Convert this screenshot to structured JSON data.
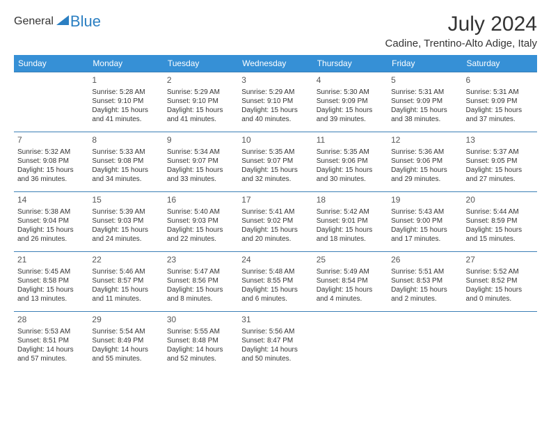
{
  "logo": {
    "word1": "General",
    "word2": "Blue"
  },
  "title": "July 2024",
  "location": "Cadine, Trentino-Alto Adige, Italy",
  "colors": {
    "header_bg": "#3690d6",
    "header_text": "#ffffff",
    "cell_border": "#3a7eb5",
    "logo_accent": "#2b7fc2"
  },
  "weekdays": [
    "Sunday",
    "Monday",
    "Tuesday",
    "Wednesday",
    "Thursday",
    "Friday",
    "Saturday"
  ],
  "weeks": [
    [
      null,
      {
        "d": "1",
        "sr": "Sunrise: 5:28 AM",
        "ss": "Sunset: 9:10 PM",
        "dl1": "Daylight: 15 hours",
        "dl2": "and 41 minutes."
      },
      {
        "d": "2",
        "sr": "Sunrise: 5:29 AM",
        "ss": "Sunset: 9:10 PM",
        "dl1": "Daylight: 15 hours",
        "dl2": "and 41 minutes."
      },
      {
        "d": "3",
        "sr": "Sunrise: 5:29 AM",
        "ss": "Sunset: 9:10 PM",
        "dl1": "Daylight: 15 hours",
        "dl2": "and 40 minutes."
      },
      {
        "d": "4",
        "sr": "Sunrise: 5:30 AM",
        "ss": "Sunset: 9:09 PM",
        "dl1": "Daylight: 15 hours",
        "dl2": "and 39 minutes."
      },
      {
        "d": "5",
        "sr": "Sunrise: 5:31 AM",
        "ss": "Sunset: 9:09 PM",
        "dl1": "Daylight: 15 hours",
        "dl2": "and 38 minutes."
      },
      {
        "d": "6",
        "sr": "Sunrise: 5:31 AM",
        "ss": "Sunset: 9:09 PM",
        "dl1": "Daylight: 15 hours",
        "dl2": "and 37 minutes."
      }
    ],
    [
      {
        "d": "7",
        "sr": "Sunrise: 5:32 AM",
        "ss": "Sunset: 9:08 PM",
        "dl1": "Daylight: 15 hours",
        "dl2": "and 36 minutes."
      },
      {
        "d": "8",
        "sr": "Sunrise: 5:33 AM",
        "ss": "Sunset: 9:08 PM",
        "dl1": "Daylight: 15 hours",
        "dl2": "and 34 minutes."
      },
      {
        "d": "9",
        "sr": "Sunrise: 5:34 AM",
        "ss": "Sunset: 9:07 PM",
        "dl1": "Daylight: 15 hours",
        "dl2": "and 33 minutes."
      },
      {
        "d": "10",
        "sr": "Sunrise: 5:35 AM",
        "ss": "Sunset: 9:07 PM",
        "dl1": "Daylight: 15 hours",
        "dl2": "and 32 minutes."
      },
      {
        "d": "11",
        "sr": "Sunrise: 5:35 AM",
        "ss": "Sunset: 9:06 PM",
        "dl1": "Daylight: 15 hours",
        "dl2": "and 30 minutes."
      },
      {
        "d": "12",
        "sr": "Sunrise: 5:36 AM",
        "ss": "Sunset: 9:06 PM",
        "dl1": "Daylight: 15 hours",
        "dl2": "and 29 minutes."
      },
      {
        "d": "13",
        "sr": "Sunrise: 5:37 AM",
        "ss": "Sunset: 9:05 PM",
        "dl1": "Daylight: 15 hours",
        "dl2": "and 27 minutes."
      }
    ],
    [
      {
        "d": "14",
        "sr": "Sunrise: 5:38 AM",
        "ss": "Sunset: 9:04 PM",
        "dl1": "Daylight: 15 hours",
        "dl2": "and 26 minutes."
      },
      {
        "d": "15",
        "sr": "Sunrise: 5:39 AM",
        "ss": "Sunset: 9:03 PM",
        "dl1": "Daylight: 15 hours",
        "dl2": "and 24 minutes."
      },
      {
        "d": "16",
        "sr": "Sunrise: 5:40 AM",
        "ss": "Sunset: 9:03 PM",
        "dl1": "Daylight: 15 hours",
        "dl2": "and 22 minutes."
      },
      {
        "d": "17",
        "sr": "Sunrise: 5:41 AM",
        "ss": "Sunset: 9:02 PM",
        "dl1": "Daylight: 15 hours",
        "dl2": "and 20 minutes."
      },
      {
        "d": "18",
        "sr": "Sunrise: 5:42 AM",
        "ss": "Sunset: 9:01 PM",
        "dl1": "Daylight: 15 hours",
        "dl2": "and 18 minutes."
      },
      {
        "d": "19",
        "sr": "Sunrise: 5:43 AM",
        "ss": "Sunset: 9:00 PM",
        "dl1": "Daylight: 15 hours",
        "dl2": "and 17 minutes."
      },
      {
        "d": "20",
        "sr": "Sunrise: 5:44 AM",
        "ss": "Sunset: 8:59 PM",
        "dl1": "Daylight: 15 hours",
        "dl2": "and 15 minutes."
      }
    ],
    [
      {
        "d": "21",
        "sr": "Sunrise: 5:45 AM",
        "ss": "Sunset: 8:58 PM",
        "dl1": "Daylight: 15 hours",
        "dl2": "and 13 minutes."
      },
      {
        "d": "22",
        "sr": "Sunrise: 5:46 AM",
        "ss": "Sunset: 8:57 PM",
        "dl1": "Daylight: 15 hours",
        "dl2": "and 11 minutes."
      },
      {
        "d": "23",
        "sr": "Sunrise: 5:47 AM",
        "ss": "Sunset: 8:56 PM",
        "dl1": "Daylight: 15 hours",
        "dl2": "and 8 minutes."
      },
      {
        "d": "24",
        "sr": "Sunrise: 5:48 AM",
        "ss": "Sunset: 8:55 PM",
        "dl1": "Daylight: 15 hours",
        "dl2": "and 6 minutes."
      },
      {
        "d": "25",
        "sr": "Sunrise: 5:49 AM",
        "ss": "Sunset: 8:54 PM",
        "dl1": "Daylight: 15 hours",
        "dl2": "and 4 minutes."
      },
      {
        "d": "26",
        "sr": "Sunrise: 5:51 AM",
        "ss": "Sunset: 8:53 PM",
        "dl1": "Daylight: 15 hours",
        "dl2": "and 2 minutes."
      },
      {
        "d": "27",
        "sr": "Sunrise: 5:52 AM",
        "ss": "Sunset: 8:52 PM",
        "dl1": "Daylight: 15 hours",
        "dl2": "and 0 minutes."
      }
    ],
    [
      {
        "d": "28",
        "sr": "Sunrise: 5:53 AM",
        "ss": "Sunset: 8:51 PM",
        "dl1": "Daylight: 14 hours",
        "dl2": "and 57 minutes."
      },
      {
        "d": "29",
        "sr": "Sunrise: 5:54 AM",
        "ss": "Sunset: 8:49 PM",
        "dl1": "Daylight: 14 hours",
        "dl2": "and 55 minutes."
      },
      {
        "d": "30",
        "sr": "Sunrise: 5:55 AM",
        "ss": "Sunset: 8:48 PM",
        "dl1": "Daylight: 14 hours",
        "dl2": "and 52 minutes."
      },
      {
        "d": "31",
        "sr": "Sunrise: 5:56 AM",
        "ss": "Sunset: 8:47 PM",
        "dl1": "Daylight: 14 hours",
        "dl2": "and 50 minutes."
      },
      null,
      null,
      null
    ]
  ]
}
